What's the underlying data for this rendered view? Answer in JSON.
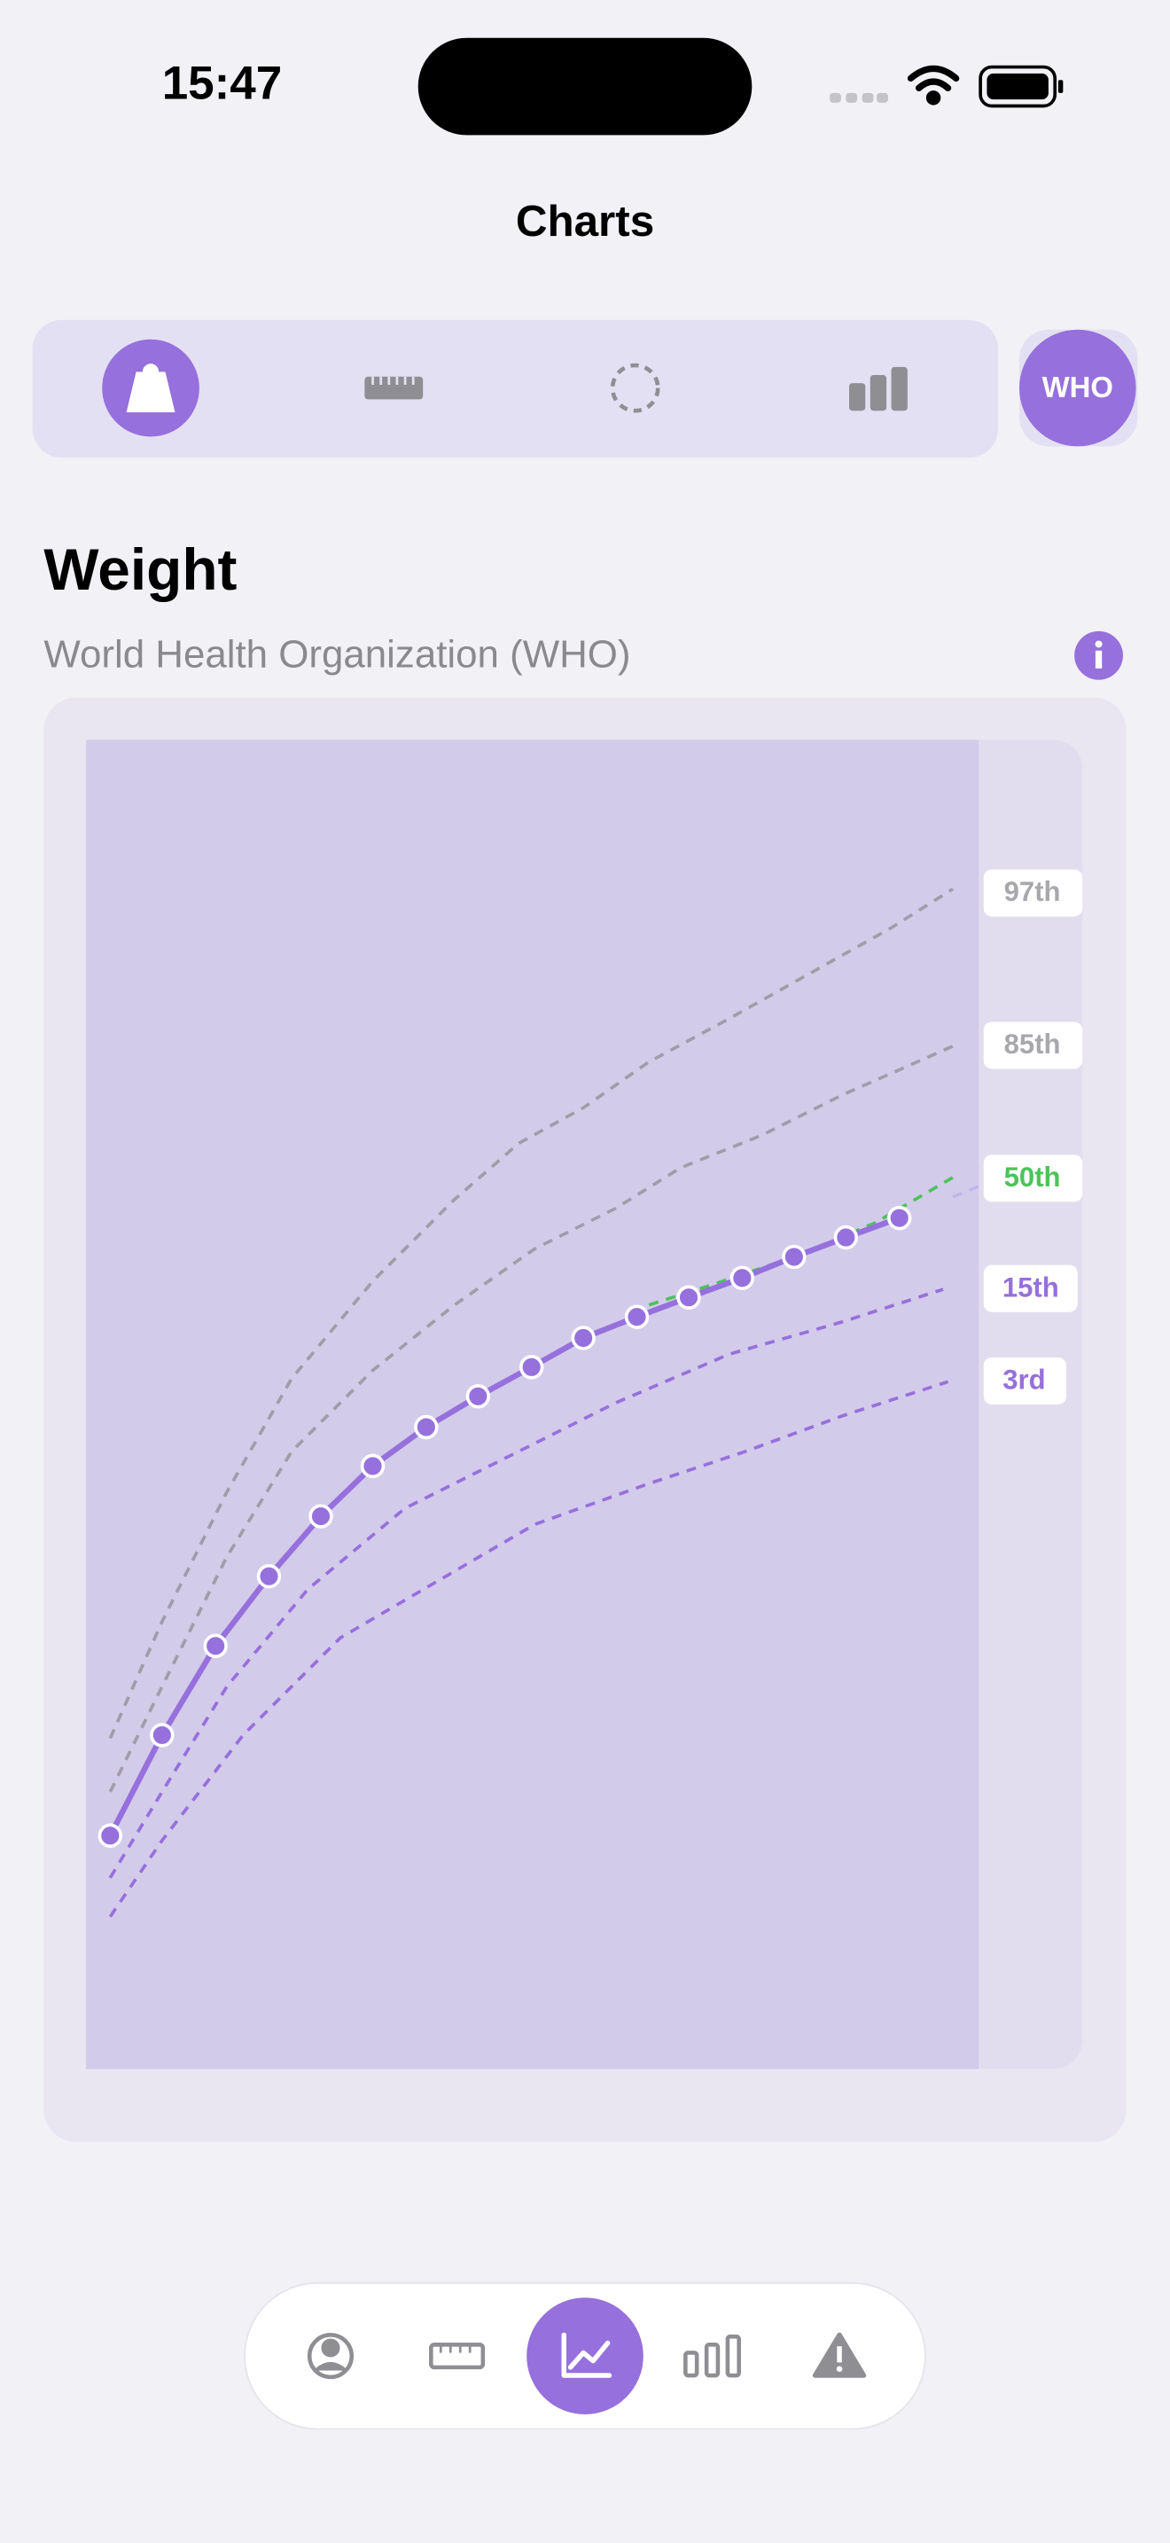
{
  "status_bar": {
    "time": "15:47"
  },
  "header": {
    "title": "Charts"
  },
  "toolbar": {
    "badge": "WHO"
  },
  "section": {
    "title": "Weight",
    "subtitle": "World Health Organization (WHO)"
  },
  "chart": {
    "percentile_labels": [
      "97th",
      "85th",
      "50th",
      "15th",
      "3rd"
    ]
  }
}
